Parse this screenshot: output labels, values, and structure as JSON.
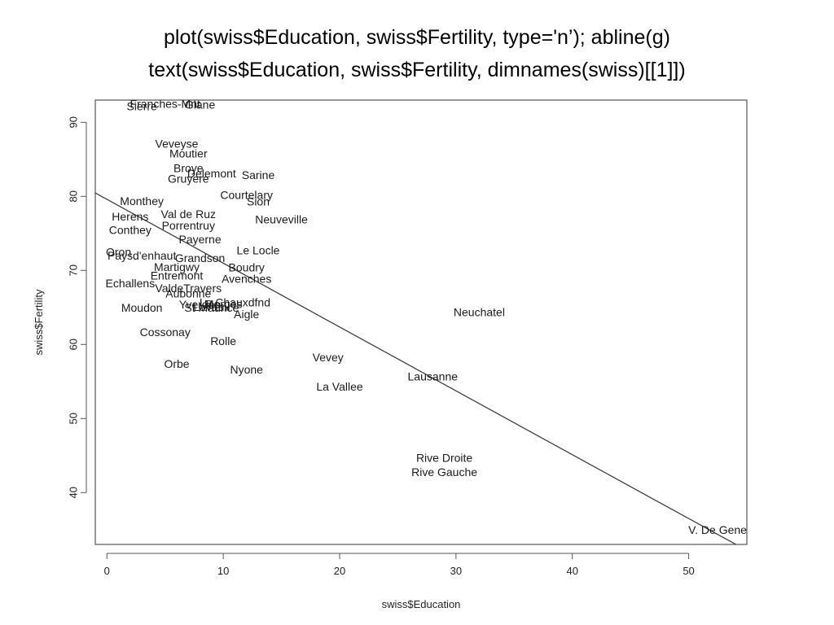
{
  "title": {
    "line1": "plot(swiss$Education, swiss$Fertility, type='n’); abline(g)",
    "line2": "text(swiss$Education, swiss$Fertility, dimnames(swiss)[[1]])"
  },
  "chart_data": {
    "type": "scatter",
    "xlabel": "swiss$Education",
    "ylabel": "swiss$Fertility",
    "xlim": [
      -1,
      55
    ],
    "ylim": [
      33,
      93
    ],
    "xticks": [
      "0",
      "10",
      "20",
      "30",
      "40",
      "50"
    ],
    "yticks": [
      "40",
      "50",
      "60",
      "70",
      "80",
      "90"
    ],
    "regression_line": {
      "intercept": 79.6,
      "slope": -0.862
    },
    "points": [
      {
        "label": "Courtelary",
        "x": 12,
        "y": 80.2
      },
      {
        "label": "Delemont",
        "x": 9,
        "y": 83.1
      },
      {
        "label": "Franches-Mnt",
        "x": 5,
        "y": 92.5
      },
      {
        "label": "Moutier",
        "x": 7,
        "y": 85.8
      },
      {
        "label": "Neuveville",
        "x": 15,
        "y": 76.9
      },
      {
        "label": "Porrentruy",
        "x": 7,
        "y": 76.1
      },
      {
        "label": "Broye",
        "x": 7,
        "y": 83.8
      },
      {
        "label": "Glane",
        "x": 8,
        "y": 92.4
      },
      {
        "label": "Gruyere",
        "x": 7,
        "y": 82.4
      },
      {
        "label": "Sarine",
        "x": 13,
        "y": 82.9
      },
      {
        "label": "Veveyse",
        "x": 6,
        "y": 87.1
      },
      {
        "label": "Aigle",
        "x": 12,
        "y": 64.1
      },
      {
        "label": "Aubonne",
        "x": 7,
        "y": 66.9
      },
      {
        "label": "Avenches",
        "x": 12,
        "y": 68.9
      },
      {
        "label": "Cossonay",
        "x": 5,
        "y": 61.7
      },
      {
        "label": "Echallens",
        "x": 2,
        "y": 68.3
      },
      {
        "label": "Grandson",
        "x": 8,
        "y": 71.7
      },
      {
        "label": "Lausanne",
        "x": 28,
        "y": 55.7
      },
      {
        "label": "La Vallee",
        "x": 20,
        "y": 54.3
      },
      {
        "label": "Lavaux",
        "x": 9,
        "y": 65.1
      },
      {
        "label": "Morges",
        "x": 10,
        "y": 65.5
      },
      {
        "label": "Moudon",
        "x": 3,
        "y": 65.0
      },
      {
        "label": "Nyone",
        "x": 12,
        "y": 56.6
      },
      {
        "label": "Orbe",
        "x": 6,
        "y": 57.4
      },
      {
        "label": "Oron",
        "x": 1,
        "y": 72.5
      },
      {
        "label": "Payerne",
        "x": 8,
        "y": 74.2
      },
      {
        "label": "Paysd'enhaut",
        "x": 3,
        "y": 72.0
      },
      {
        "label": "Rolle",
        "x": 10,
        "y": 60.5
      },
      {
        "label": "Vevey",
        "x": 19,
        "y": 58.3
      },
      {
        "label": "Yverdon",
        "x": 8,
        "y": 65.4
      },
      {
        "label": "Conthey",
        "x": 2,
        "y": 75.5
      },
      {
        "label": "Entremont",
        "x": 6,
        "y": 69.3
      },
      {
        "label": "Herens",
        "x": 2,
        "y": 77.3
      },
      {
        "label": "Martigwy",
        "x": 6,
        "y": 70.5
      },
      {
        "label": "Monthey",
        "x": 3,
        "y": 79.4
      },
      {
        "label": "St Maurice",
        "x": 9,
        "y": 65.0
      },
      {
        "label": "Sierre",
        "x": 3,
        "y": 92.2
      },
      {
        "label": "Sion",
        "x": 13,
        "y": 79.3
      },
      {
        "label": "Boudry",
        "x": 12,
        "y": 70.4
      },
      {
        "label": "La Chauxdfnd",
        "x": 11,
        "y": 65.7
      },
      {
        "label": "Le Locle",
        "x": 13,
        "y": 72.7
      },
      {
        "label": "Neuchatel",
        "x": 32,
        "y": 64.4
      },
      {
        "label": "Val de Ruz",
        "x": 7,
        "y": 77.6
      },
      {
        "label": "ValdeTravers",
        "x": 7,
        "y": 67.6
      },
      {
        "label": "V. De Geneve",
        "x": 53,
        "y": 35.0
      },
      {
        "label": "Rive Droite",
        "x": 29,
        "y": 44.7
      },
      {
        "label": "Rive Gauche",
        "x": 29,
        "y": 42.8
      }
    ]
  }
}
